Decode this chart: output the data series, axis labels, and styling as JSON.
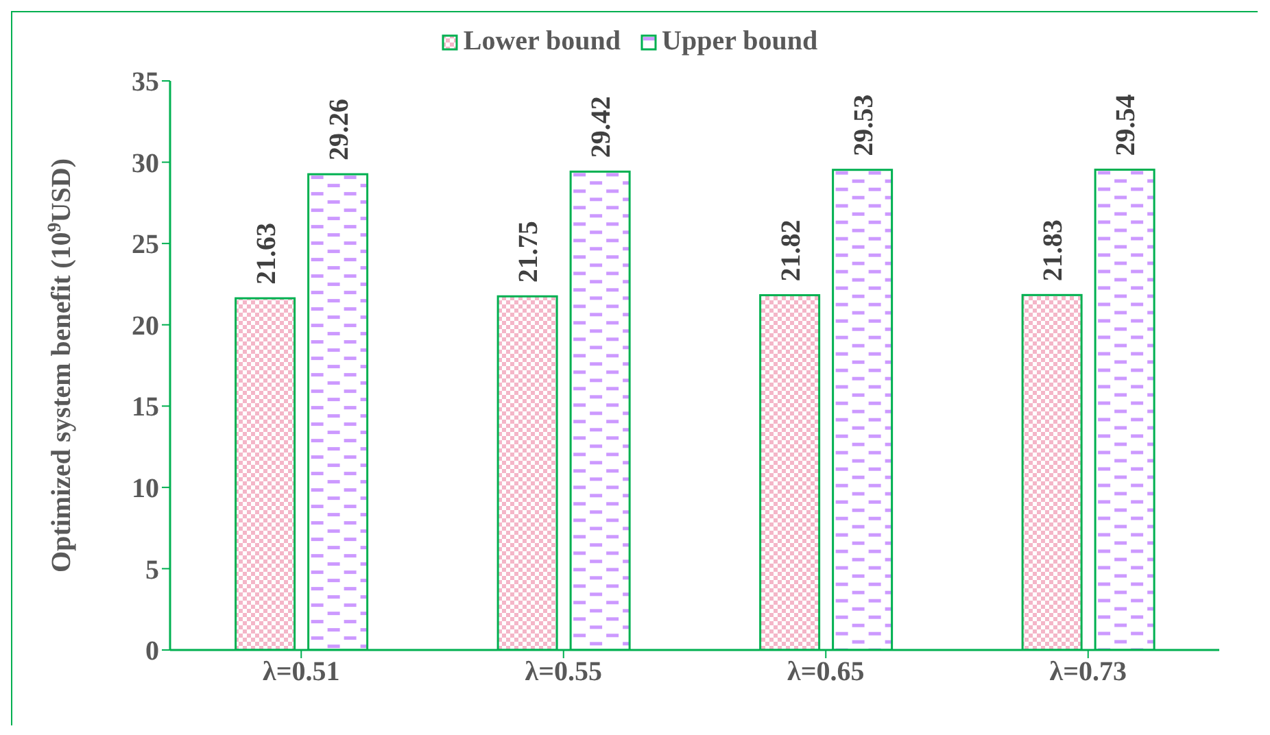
{
  "chart_data": {
    "type": "bar",
    "ylabel": "Optimized  system benefit (10$^{9}$USD)",
    "categories": [
      "λ=0.51",
      "λ=0.55",
      "λ=0.65",
      "λ=0.73"
    ],
    "series": [
      {
        "name": "Lower bound",
        "color": "#f4b6c8",
        "values": [
          21.63,
          21.75,
          21.82,
          21.83
        ]
      },
      {
        "name": "Upper bound",
        "color": "#cc99ff",
        "values": [
          29.26,
          29.42,
          29.53,
          29.54
        ]
      }
    ],
    "ylim": [
      0,
      35
    ],
    "yticks": [
      0,
      5,
      10,
      15,
      20,
      25,
      30,
      35
    ],
    "data_labels": true,
    "legend": "top",
    "grid": false
  }
}
